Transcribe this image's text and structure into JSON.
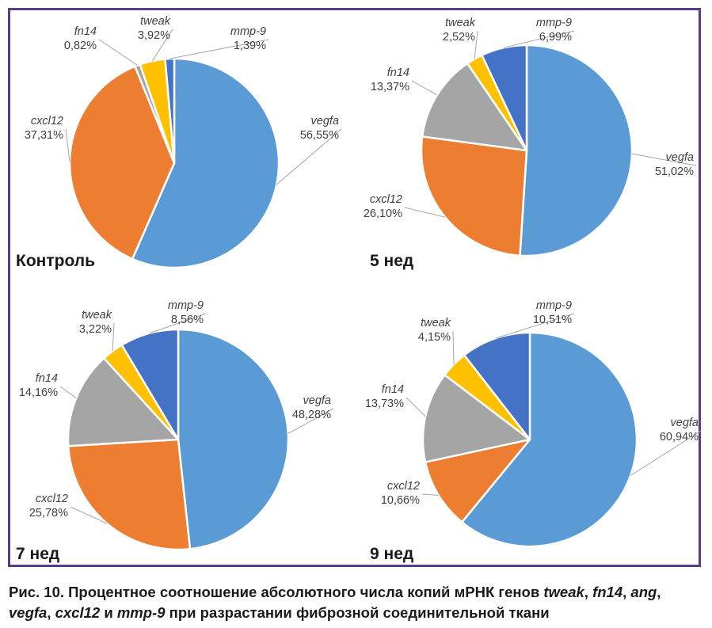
{
  "colors": {
    "frame": "#5b3b8c",
    "vegfa": "#5b9bd5",
    "cxcl12": "#ed7d31",
    "fn14": "#a5a5a5",
    "tweak": "#ffc000",
    "mmp-9": "#4472c4"
  },
  "chart_data": [
    {
      "type": "pie",
      "title": "Контроль",
      "slices": [
        {
          "name": "vegfa",
          "value": 56.55,
          "label": "56,55%"
        },
        {
          "name": "cxcl12",
          "value": 37.31,
          "label": "37,31%"
        },
        {
          "name": "fn14",
          "value": 0.82,
          "label": "0,82%"
        },
        {
          "name": "tweak",
          "value": 3.92,
          "label": "3,92%"
        },
        {
          "name": "mmp-9",
          "value": 1.39,
          "label": "1,39%"
        }
      ]
    },
    {
      "type": "pie",
      "title": "5 нед",
      "slices": [
        {
          "name": "vegfa",
          "value": 51.02,
          "label": "51,02%"
        },
        {
          "name": "cxcl12",
          "value": 26.1,
          "label": "26,10%"
        },
        {
          "name": "fn14",
          "value": 13.37,
          "label": "13,37%"
        },
        {
          "name": "tweak",
          "value": 2.52,
          "label": "2,52%"
        },
        {
          "name": "mmp-9",
          "value": 6.99,
          "label": "6,99%"
        }
      ]
    },
    {
      "type": "pie",
      "title": "7 нед",
      "slices": [
        {
          "name": "vegfa",
          "value": 48.28,
          "label": "48,28%"
        },
        {
          "name": "cxcl12",
          "value": 25.78,
          "label": "25,78%"
        },
        {
          "name": "fn14",
          "value": 14.16,
          "label": "14,16%"
        },
        {
          "name": "tweak",
          "value": 3.22,
          "label": "3,22%"
        },
        {
          "name": "mmp-9",
          "value": 8.56,
          "label": "8,56%"
        }
      ]
    },
    {
      "type": "pie",
      "title": "9 нед",
      "slices": [
        {
          "name": "vegfa",
          "value": 60.94,
          "label": "60,94%"
        },
        {
          "name": "cxcl12",
          "value": 10.66,
          "label": "10,66%"
        },
        {
          "name": "fn14",
          "value": 13.73,
          "label": "13,73%"
        },
        {
          "name": "tweak",
          "value": 4.15,
          "label": "4,15%"
        },
        {
          "name": "mmp-9",
          "value": 10.51,
          "label": "10,51%"
        }
      ]
    }
  ],
  "caption": {
    "lead": "Рис. 10. Процентное соотношение абсолютного числа копий мРНК генов ",
    "g1": "tweak",
    "s1": ", ",
    "g2": "fn14",
    "s2": ", ",
    "g3": "ang",
    "s3": ", ",
    "g4": "vegfa",
    "s4": ", ",
    "g5": "cxcl12",
    "s5": " и ",
    "g6": "mmp-9",
    "tail": " при разрастании фиброзной соединительной ткани"
  }
}
